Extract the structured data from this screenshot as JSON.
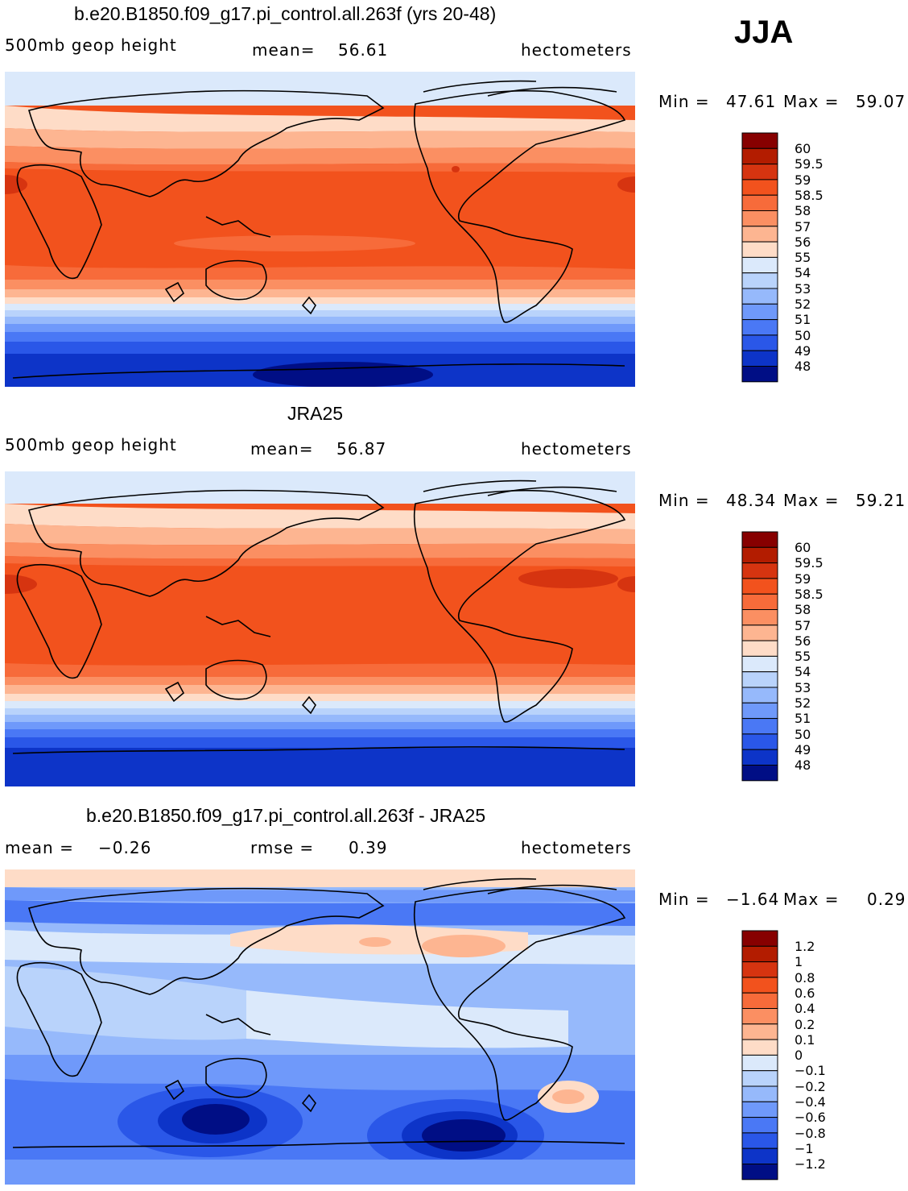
{
  "season": "JJA",
  "panels": [
    {
      "title": "b.e20.B1850.f09_g17.pi_control.all.263f (yrs 20-48)",
      "left_label": "500mb  geop  height",
      "mean_label": "mean=",
      "mean_value": "56.61",
      "units": "hectometers",
      "min_label": "Min =",
      "min_value": "47.61",
      "max_label": "Max =",
      "max_value": "59.07",
      "colorbar_labels": [
        "60",
        "59.5",
        "59",
        "58.5",
        "58",
        "57",
        "56",
        "55",
        "54",
        "53",
        "52",
        "51",
        "50",
        "49",
        "48"
      ],
      "colorbar_colors": [
        "#870000",
        "#b31c00",
        "#d63410",
        "#f2521d",
        "#f76b3a",
        "#fb8f62",
        "#fdb591",
        "#fedcc7",
        "#dbe9fb",
        "#b9d3fb",
        "#96b9fb",
        "#6f99fa",
        "#4a78f5",
        "#2a57e8",
        "#0d34c8",
        "#000e85"
      ]
    },
    {
      "title": "JRA25",
      "left_label": "500mb  geop  height",
      "mean_label": "mean=",
      "mean_value": "56.87",
      "units": "hectometers",
      "min_label": "Min =",
      "min_value": "48.34",
      "max_label": "Max =",
      "max_value": "59.21",
      "colorbar_labels": [
        "60",
        "59.5",
        "59",
        "58.5",
        "58",
        "57",
        "56",
        "55",
        "54",
        "53",
        "52",
        "51",
        "50",
        "49",
        "48"
      ],
      "colorbar_colors": [
        "#870000",
        "#b31c00",
        "#d63410",
        "#f2521d",
        "#f76b3a",
        "#fb8f62",
        "#fdb591",
        "#fedcc7",
        "#dbe9fb",
        "#b9d3fb",
        "#96b9fb",
        "#6f99fa",
        "#4a78f5",
        "#2a57e8",
        "#0d34c8",
        "#000e85"
      ]
    },
    {
      "title": "b.e20.B1850.f09_g17.pi_control.all.263f - JRA25",
      "left_label": "mean =",
      "left_value": "−0.26",
      "mean_label": "rmse =",
      "mean_value": "0.39",
      "units": "hectometers",
      "min_label": "Min =",
      "min_value": "−1.64",
      "max_label": "Max =",
      "max_value": "0.29",
      "colorbar_labels": [
        "1.2",
        "1",
        "0.8",
        "0.6",
        "0.4",
        "0.2",
        "0.1",
        "0",
        "−0.1",
        "−0.2",
        "−0.4",
        "−0.6",
        "−0.8",
        "−1",
        "−1.2"
      ],
      "colorbar_colors": [
        "#870000",
        "#b31c00",
        "#d63410",
        "#f2521d",
        "#f76b3a",
        "#fb8f62",
        "#fdb591",
        "#fedcc7",
        "#dbe9fb",
        "#b9d3fb",
        "#96b9fb",
        "#6f99fa",
        "#4a78f5",
        "#2a57e8",
        "#0d34c8",
        "#000e85"
      ]
    }
  ]
}
